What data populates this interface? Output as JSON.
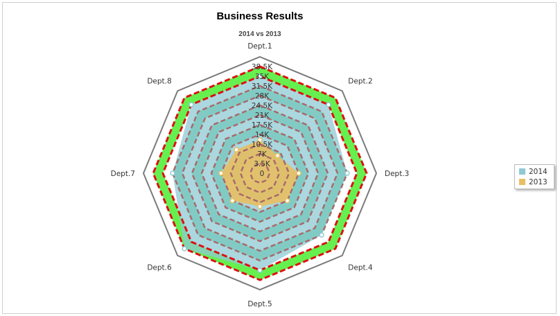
{
  "chart_data": {
    "type": "radar",
    "title": "Business Results",
    "subtitle": "2014 vs 2013",
    "categories": [
      "Dept.1",
      "Dept.2",
      "Dept.3",
      "Dept.4",
      "Dept.5",
      "Dept.6",
      "Dept.7",
      "Dept.8"
    ],
    "tick_labels": [
      "0",
      "3.5K",
      "7K",
      "10.5K",
      "14K",
      "17.5K",
      "21K",
      "24.5K",
      "28K",
      "31.5K",
      "35K",
      "38.5K"
    ],
    "ticks": [
      0,
      3500,
      7000,
      10500,
      14000,
      17500,
      21000,
      24500,
      28000,
      31500,
      35000,
      38500
    ],
    "rmax": 42000,
    "legend_position": "right",
    "series": [
      {
        "name": "2014",
        "color": "#8fc9d4",
        "values": [
          35000,
          35000,
          31500,
          31500,
          35000,
          38500,
          31500,
          35000
        ]
      },
      {
        "name": "2013",
        "color": "#e8bf62",
        "values": [
          12000,
          9000,
          14000,
          14000,
          12000,
          14000,
          14000,
          12000
        ]
      }
    ],
    "bands": [
      {
        "from": 7000,
        "to": 10500,
        "color": "#5dcf96"
      },
      {
        "from": 14000,
        "to": 17500,
        "color": "#5dcf96"
      },
      {
        "from": 21000,
        "to": 24500,
        "color": "#5dcf96"
      },
      {
        "from": 28000,
        "to": 31500,
        "color": "#5dcf96"
      },
      {
        "from": 35000,
        "to": 38500,
        "color": "#66f050"
      }
    ],
    "dashed_rings": {
      "grey": [
        3500,
        7000,
        10500,
        14000,
        17500,
        21000,
        24500,
        28000,
        31500
      ],
      "red": [
        35000,
        38500
      ]
    },
    "colors": {
      "outer_ring": "#7a7a7a",
      "grey_dash": "#a86a6a",
      "red_dash": "#dd1010",
      "marker_2014": "#8fc9d4",
      "marker_2013": "#e8bf62"
    }
  }
}
